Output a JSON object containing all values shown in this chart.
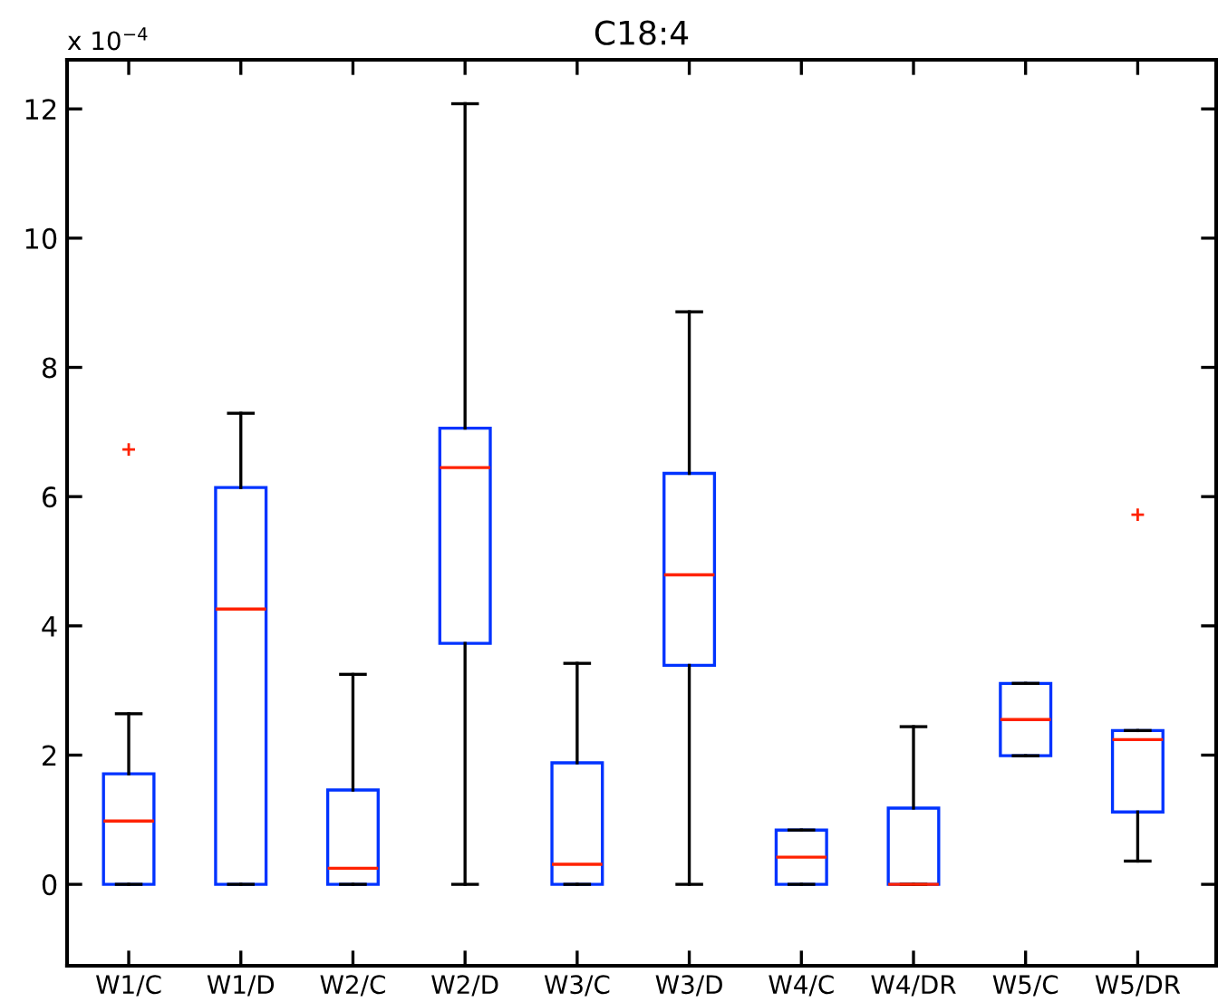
{
  "chart_data": {
    "type": "box",
    "title": "C18:4",
    "annotations": [
      "x 10$^{−4}$"
    ],
    "categories": [
      "W1/C",
      "W1/D",
      "W2/C",
      "W2/D",
      "W3/C",
      "W3/D",
      "W4/C",
      "W4/DR",
      "W5/C",
      "W5/DR"
    ],
    "ylim": [
      -1.26,
      12.76
    ],
    "yticks": [
      0,
      2,
      4,
      6,
      8,
      10,
      12
    ],
    "grid": false,
    "boxes": [
      {
        "low": 0,
        "q1": 0,
        "median": 0.98,
        "q3": 1.71,
        "high": 2.64,
        "outliers": [
          6.73
        ]
      },
      {
        "low": 0,
        "q1": 0,
        "median": 4.26,
        "q3": 6.14,
        "high": 7.29
      },
      {
        "low": 0,
        "q1": 0,
        "median": 0.25,
        "q3": 1.46,
        "high": 3.25
      },
      {
        "low": 0,
        "q1": 3.73,
        "median": 6.45,
        "q3": 7.06,
        "high": 12.08
      },
      {
        "low": 0,
        "q1": 0,
        "median": 0.31,
        "q3": 1.88,
        "high": 3.42
      },
      {
        "low": 0,
        "q1": 3.39,
        "median": 4.79,
        "q3": 6.36,
        "high": 8.86
      },
      {
        "low": 0,
        "q1": 0,
        "median": 0.42,
        "q3": 0.84,
        "high": 0.84
      },
      {
        "low": 0,
        "q1": 0,
        "median": 0,
        "q3": 1.18,
        "high": 2.44
      },
      {
        "low": 1.99,
        "q1": 1.99,
        "median": 2.55,
        "q3": 3.11,
        "high": 3.11
      },
      {
        "low": 0.36,
        "q1": 1.12,
        "median": 2.24,
        "q3": 2.38,
        "high": 2.38,
        "outliers": [
          5.72
        ]
      }
    ],
    "color": "#0033ff",
    "marker": "cross"
  }
}
